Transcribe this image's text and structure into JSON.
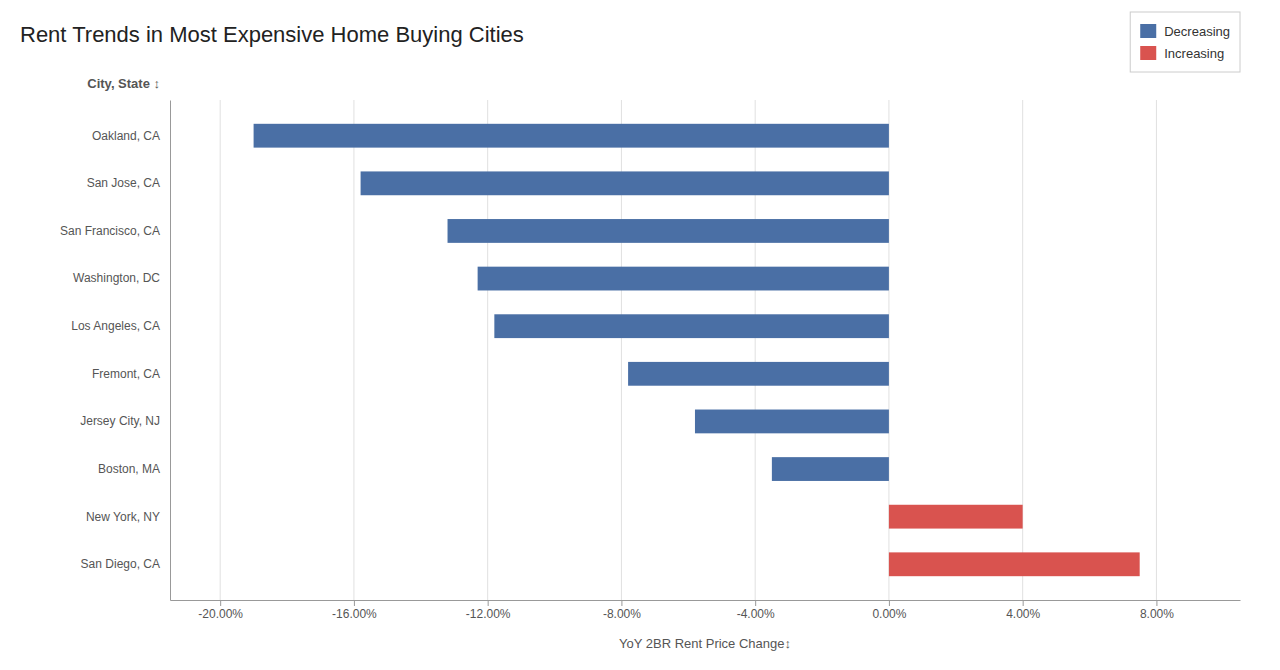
{
  "chart_data": {
    "type": "bar",
    "orientation": "horizontal",
    "stacked": true,
    "title": "Rent Trends in Most Expensive Home Buying Cities",
    "xlabel": "YoY 2BR Rent Price Change↕",
    "ylabel": "City, State ↕",
    "categories": [
      "San Diego, CA",
      "New York, NY",
      "Boston, MA",
      "Jersey City, NJ",
      "Fremont, CA",
      "Los Angeles, CA",
      "Washington, DC",
      "San Francisco, CA",
      "San Jose, CA",
      "Oakland, CA"
    ],
    "series": [
      {
        "name": "Decreasing",
        "color": "#4a6fa5",
        "values": [
          null,
          null,
          -3.5,
          -5.8,
          -7.8,
          -11.8,
          -12.3,
          -13.2,
          -15.8,
          -19.0
        ]
      },
      {
        "name": "Increasing",
        "color": "#d9534f",
        "values": [
          7.5,
          4.0,
          null,
          null,
          null,
          null,
          null,
          null,
          null,
          null
        ]
      }
    ],
    "xlim": [
      -21.5,
      10.5
    ],
    "xticks": [
      {
        "value": -20,
        "label": "-20.00%"
      },
      {
        "value": -16,
        "label": "-16.00%"
      },
      {
        "value": -12,
        "label": "-12.00%"
      },
      {
        "value": -8,
        "label": "-8.00%"
      },
      {
        "value": -4,
        "label": "-4.00%"
      },
      {
        "value": 0,
        "label": "0.00%"
      },
      {
        "value": 4,
        "label": "4.00%"
      },
      {
        "value": 8,
        "label": "8.00%"
      }
    ],
    "grid": true,
    "legend": "upper right"
  }
}
